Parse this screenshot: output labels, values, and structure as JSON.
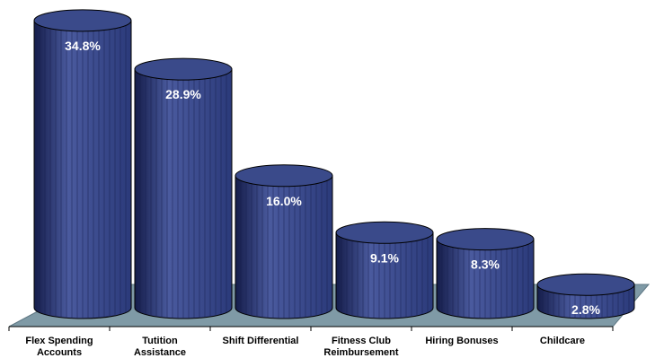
{
  "chart_data": {
    "type": "bar",
    "style": "3d-cylinder",
    "categories": [
      [
        "Flex Spending",
        "Accounts"
      ],
      [
        "Tutition",
        "Assistance"
      ],
      [
        "Shift Differential"
      ],
      [
        "Fitness Club",
        "Reimbursement"
      ],
      [
        "Hiring Bonuses"
      ],
      [
        "Childcare"
      ]
    ],
    "values": [
      34.8,
      28.9,
      16.0,
      9.1,
      8.3,
      2.8
    ],
    "data_labels": [
      "34.8%",
      "28.9%",
      "16.0%",
      "9.1%",
      "8.3%",
      "2.8%"
    ],
    "title": "",
    "xlabel": "",
    "ylabel": "",
    "ylim": [
      0,
      35
    ],
    "grid": false,
    "legend": "none",
    "colors": {
      "bar": "#2b3a7a",
      "bar_dark": "#151d4a",
      "bar_light": "#4a5a9e",
      "top": "#3a4a8a",
      "floor": "#7f9aa6",
      "outline": "#000000"
    }
  }
}
